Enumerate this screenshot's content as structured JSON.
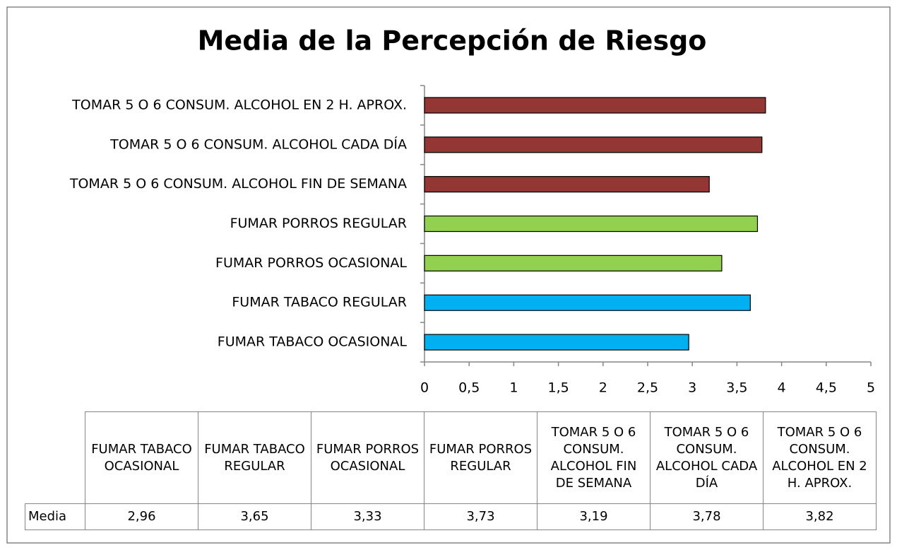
{
  "chart_data": {
    "type": "bar",
    "orientation": "horizontal",
    "title": "Media de la Percepción de Riesgo",
    "categories": [
      "FUMAR TABACO OCASIONAL",
      "FUMAR TABACO REGULAR",
      "FUMAR PORROS OCASIONAL",
      "FUMAR PORROS REGULAR",
      "TOMAR 5 O 6 CONSUM. ALCOHOL FIN DE SEMANA",
      "TOMAR 5 O 6 CONSUM. ALCOHOL CADA DÍA",
      "TOMAR 5 O 6 CONSUM. ALCOHOL EN 2 H. APROX."
    ],
    "values": [
      2.96,
      3.65,
      3.33,
      3.73,
      3.19,
      3.78,
      3.82
    ],
    "value_labels": [
      "2,96",
      "3,65",
      "3,33",
      "3,73",
      "3,19",
      "3,78",
      "3,82"
    ],
    "colors": [
      "#00b0f0",
      "#00b0f0",
      "#92d050",
      "#92d050",
      "#943634",
      "#943634",
      "#943634"
    ],
    "xlim": [
      0,
      5
    ],
    "xticks": [
      0,
      {
        "value": 0.5,
        "label": "0,5"
      },
      1,
      {
        "value": 1.5,
        "label": "1,5"
      },
      2,
      {
        "value": 2.5,
        "label": "2,5"
      },
      3,
      {
        "value": 3.5,
        "label": "3,5"
      },
      4,
      {
        "value": 4.5,
        "label": "4,5"
      },
      5
    ],
    "grid": false,
    "table_row_label": "Media"
  }
}
